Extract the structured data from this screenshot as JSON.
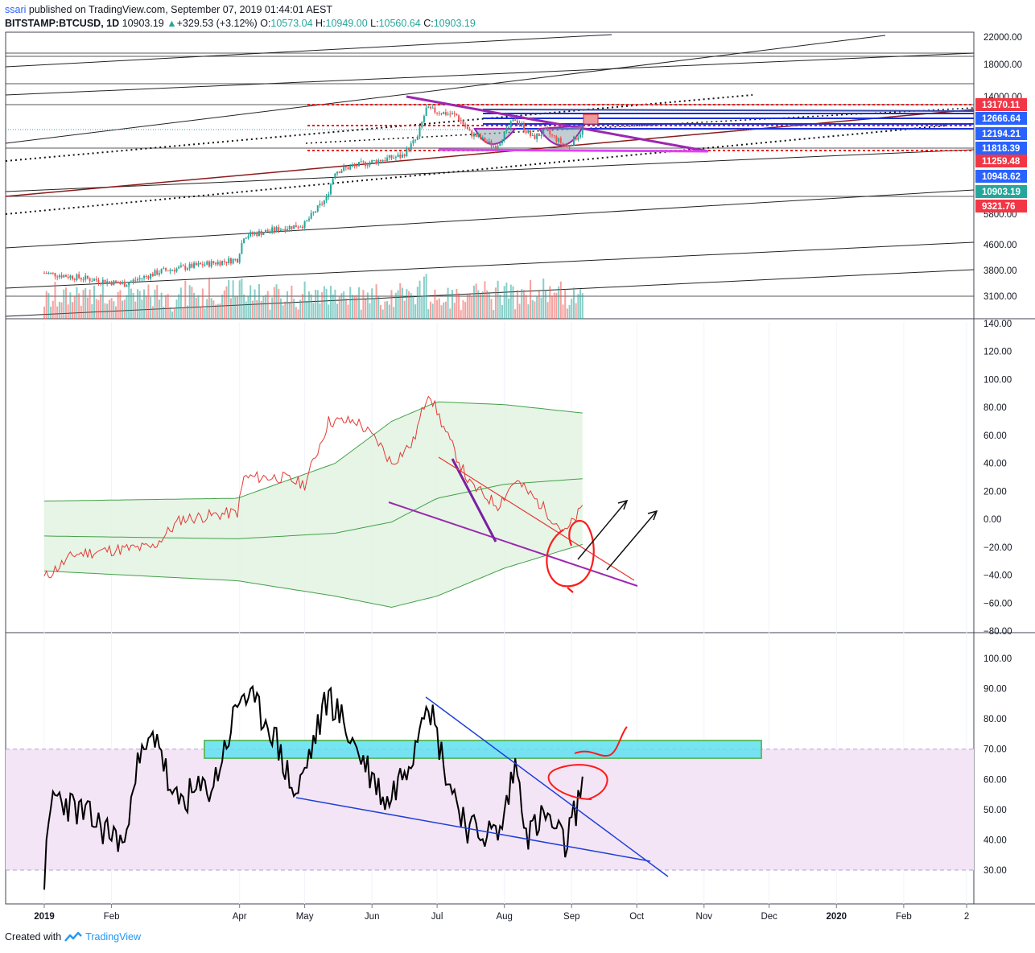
{
  "header": {
    "user": "ssari",
    "published_text": "published on TradingView.com, September 07, 2019 01:44:01 AEST",
    "symbol": "BITSTAMP:BTCUSD, 1D",
    "last": "10903.19",
    "change": "+329.53 (+3.12%)",
    "o_label": "O:",
    "o": "10573.04",
    "h_label": "H:",
    "h": "10949.00",
    "l_label": "L:",
    "l": "10560.64",
    "c_label": "C:",
    "c": "10903.19"
  },
  "footer": {
    "created_with": "Created with",
    "brand": "TradingView"
  },
  "colors": {
    "up": "#26a69a",
    "down": "#ef5350",
    "purple": "#9c27b0",
    "blue": "#2962ff",
    "red_line": "#ef1c1c",
    "cyan_box": "#5ee1f0",
    "rsi_band": "#f3e5f5",
    "bb_fill": "#e0f2e0"
  },
  "chart_data": [
    {
      "type": "candlestick",
      "panel": "price",
      "scale": "log",
      "ylim": [
        2900,
        23000
      ],
      "x_ticks": [
        "2019",
        "Feb",
        "Apr",
        "May",
        "Jun",
        "Jul",
        "Aug",
        "Sep",
        "Oct",
        "Nov",
        "Dec",
        "2020",
        "Feb",
        "2"
      ],
      "y_ticks": [
        "22000.00",
        "18000.00",
        "14000.00",
        "5800.00",
        "4600.00",
        "3800.00",
        "3100.00"
      ],
      "price_labels": [
        {
          "value": "13170.11",
          "color": "#f23645"
        },
        {
          "value": "12666.64",
          "color": "#2962ff"
        },
        {
          "value": "12194.21",
          "color": "#2962ff"
        },
        {
          "value": "11818.39",
          "color": "#2962ff"
        },
        {
          "value": "11259.48",
          "color": "#f23645"
        },
        {
          "value": "10948.62",
          "color": "#2962ff"
        },
        {
          "value": "10903.19",
          "color": "#26a69a"
        },
        {
          "value": "9321.76",
          "color": "#f23645"
        }
      ],
      "close_keypoints": [
        {
          "t": "2019-01-01",
          "v": 3700
        },
        {
          "t": "2019-02-07",
          "v": 3400
        },
        {
          "t": "2019-02-24",
          "v": 3750
        },
        {
          "t": "2019-03-31",
          "v": 4100
        },
        {
          "t": "2019-04-03",
          "v": 4900
        },
        {
          "t": "2019-05-01",
          "v": 5350
        },
        {
          "t": "2019-05-11",
          "v": 6500
        },
        {
          "t": "2019-05-15",
          "v": 8000
        },
        {
          "t": "2019-06-01",
          "v": 8600
        },
        {
          "t": "2019-06-15",
          "v": 9000
        },
        {
          "t": "2019-06-22",
          "v": 10300
        },
        {
          "t": "2019-06-26",
          "v": 12800
        },
        {
          "t": "2019-07-10",
          "v": 12200
        },
        {
          "t": "2019-07-16",
          "v": 10700
        },
        {
          "t": "2019-07-28",
          "v": 9600
        },
        {
          "t": "2019-08-06",
          "v": 11900
        },
        {
          "t": "2019-08-14",
          "v": 10300
        },
        {
          "t": "2019-08-20",
          "v": 10800
        },
        {
          "t": "2019-08-30",
          "v": 9600
        },
        {
          "t": "2019-09-06",
          "v": 10903
        }
      ]
    },
    {
      "type": "line",
      "panel": "oscillator",
      "ylim": [
        -80,
        140
      ],
      "y_ticks": [
        "140.00",
        "120.00",
        "100.00",
        "80.00",
        "60.00",
        "40.00",
        "20.00",
        "0.00",
        "−20.00",
        "−40.00",
        "−60.00",
        "−80.00"
      ],
      "series": [
        {
          "values": [
            {
              "t": "2019-01-01",
              "v": -42
            },
            {
              "t": "2019-01-15",
              "v": -25
            },
            {
              "t": "2019-02-01",
              "v": -22
            },
            {
              "t": "2019-02-20",
              "v": -20
            },
            {
              "t": "2019-03-05",
              "v": 0
            },
            {
              "t": "2019-03-31",
              "v": 5
            },
            {
              "t": "2019-04-03",
              "v": 30
            },
            {
              "t": "2019-04-20",
              "v": 30
            },
            {
              "t": "2019-05-01",
              "v": 25
            },
            {
              "t": "2019-05-12",
              "v": 70
            },
            {
              "t": "2019-05-25",
              "v": 70
            },
            {
              "t": "2019-06-04",
              "v": 55
            },
            {
              "t": "2019-06-10",
              "v": 40
            },
            {
              "t": "2019-06-20",
              "v": 55
            },
            {
              "t": "2019-06-27",
              "v": 92
            },
            {
              "t": "2019-07-05",
              "v": 62
            },
            {
              "t": "2019-07-16",
              "v": 25
            },
            {
              "t": "2019-07-29",
              "v": 10
            },
            {
              "t": "2019-08-06",
              "v": 28
            },
            {
              "t": "2019-08-18",
              "v": 10
            },
            {
              "t": "2019-08-29",
              "v": -10
            },
            {
              "t": "2019-09-06",
              "v": 8
            }
          ]
        }
      ],
      "bands": {
        "upper": [
          {
            "t": "2019-01-01",
            "v": 13
          },
          {
            "t": "2019-03-31",
            "v": 15
          },
          {
            "t": "2019-05-15",
            "v": 40
          },
          {
            "t": "2019-06-10",
            "v": 70
          },
          {
            "t": "2019-07-01",
            "v": 84
          },
          {
            "t": "2019-08-01",
            "v": 82
          },
          {
            "t": "2019-09-06",
            "v": 76
          }
        ],
        "middle": [
          {
            "t": "2019-01-01",
            "v": -12
          },
          {
            "t": "2019-03-31",
            "v": -14
          },
          {
            "t": "2019-05-15",
            "v": -10
          },
          {
            "t": "2019-06-10",
            "v": -2
          },
          {
            "t": "2019-07-01",
            "v": 15
          },
          {
            "t": "2019-08-01",
            "v": 25
          },
          {
            "t": "2019-09-06",
            "v": 29
          }
        ],
        "lower": [
          {
            "t": "2019-01-01",
            "v": -37
          },
          {
            "t": "2019-03-31",
            "v": -44
          },
          {
            "t": "2019-05-15",
            "v": -55
          },
          {
            "t": "2019-06-10",
            "v": -63
          },
          {
            "t": "2019-07-01",
            "v": -55
          },
          {
            "t": "2019-08-01",
            "v": -35
          },
          {
            "t": "2019-09-06",
            "v": -18
          }
        ]
      }
    },
    {
      "type": "line",
      "panel": "rsi",
      "ylim": [
        20,
        105
      ],
      "y_ticks": [
        "100.00",
        "90.00",
        "80.00",
        "70.00",
        "60.00",
        "50.00",
        "40.00",
        "30.00"
      ],
      "band": [
        30,
        70
      ],
      "series": [
        {
          "values": [
            {
              "t": "2019-01-01",
              "v": 28
            },
            {
              "t": "2019-01-05",
              "v": 55
            },
            {
              "t": "2019-01-20",
              "v": 48
            },
            {
              "t": "2019-02-05",
              "v": 40
            },
            {
              "t": "2019-02-08",
              "v": 38
            },
            {
              "t": "2019-02-10",
              "v": 60
            },
            {
              "t": "2019-02-22",
              "v": 76
            },
            {
              "t": "2019-03-01",
              "v": 52
            },
            {
              "t": "2019-03-20",
              "v": 58
            },
            {
              "t": "2019-04-02",
              "v": 89
            },
            {
              "t": "2019-04-15",
              "v": 78
            },
            {
              "t": "2019-04-27",
              "v": 54
            },
            {
              "t": "2019-05-12",
              "v": 88
            },
            {
              "t": "2019-05-25",
              "v": 70
            },
            {
              "t": "2019-06-08",
              "v": 52
            },
            {
              "t": "2019-06-20",
              "v": 70
            },
            {
              "t": "2019-06-26",
              "v": 89
            },
            {
              "t": "2019-07-06",
              "v": 60
            },
            {
              "t": "2019-07-16",
              "v": 43
            },
            {
              "t": "2019-07-30",
              "v": 42
            },
            {
              "t": "2019-08-06",
              "v": 65
            },
            {
              "t": "2019-08-12",
              "v": 42
            },
            {
              "t": "2019-08-20",
              "v": 48
            },
            {
              "t": "2019-08-29",
              "v": 38
            },
            {
              "t": "2019-09-06",
              "v": 58
            }
          ]
        }
      ]
    }
  ]
}
